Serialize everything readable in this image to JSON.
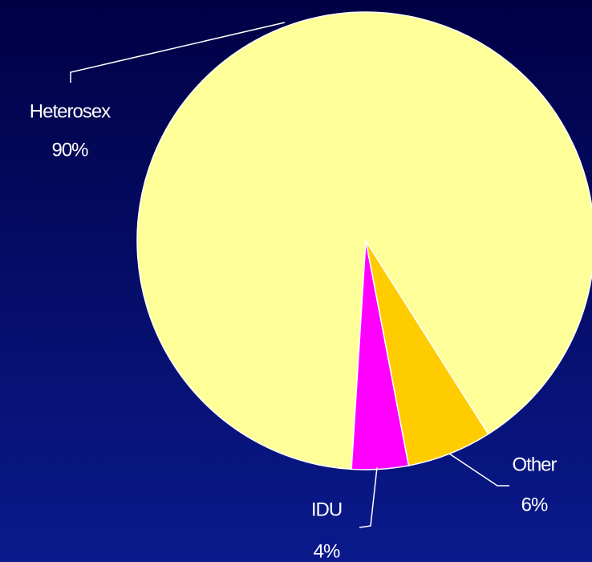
{
  "chart_data": {
    "type": "pie",
    "categories": [
      "Heterosex",
      "Other",
      "IDU"
    ],
    "values": [
      90,
      6,
      4
    ],
    "value_labels": [
      "90%",
      "6%",
      "4%"
    ],
    "colors": [
      "#ffff99",
      "#ffcc00",
      "#ff00ff"
    ]
  }
}
